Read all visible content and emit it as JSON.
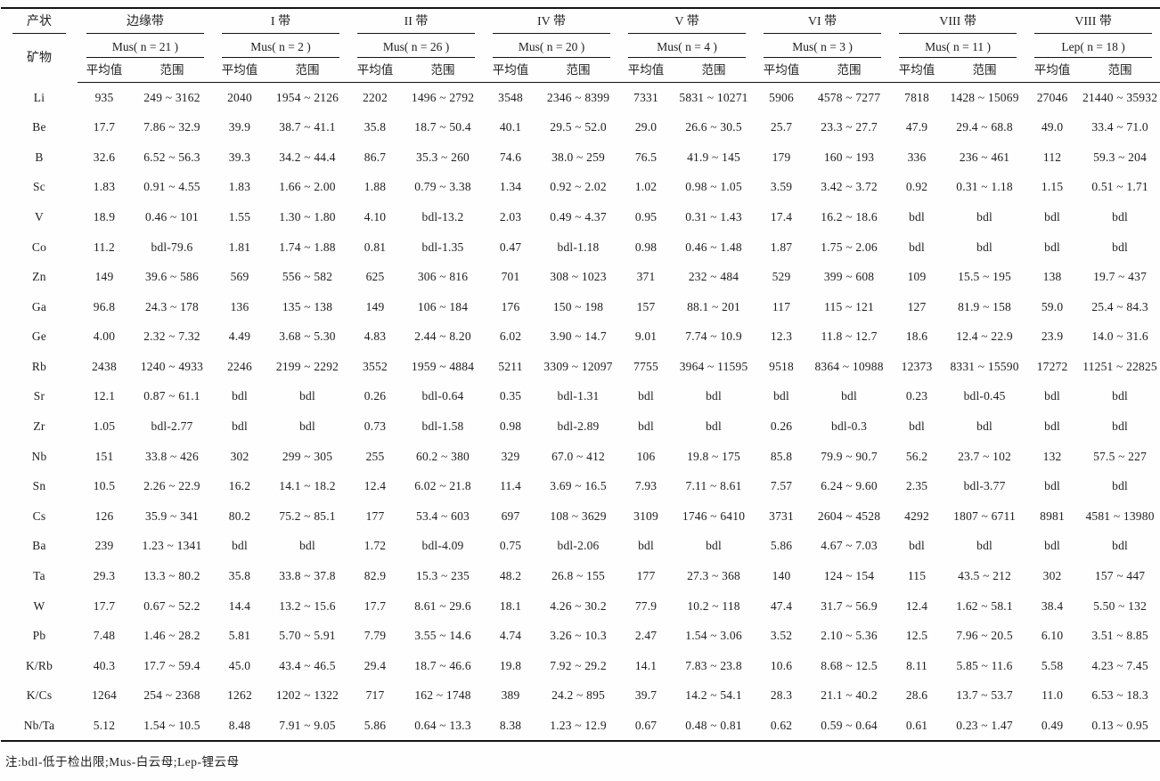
{
  "table": {
    "stub": {
      "occurrence_label": "产状",
      "mineral_label": "矿物"
    },
    "subheaders": [
      "平均值",
      "范围"
    ],
    "zones": [
      {
        "zone": "边缘带",
        "mineral": "Mus( n = 21 )"
      },
      {
        "zone": "I 带",
        "mineral": "Mus( n = 2 )"
      },
      {
        "zone": "II 带",
        "mineral": "Mus( n = 26 )"
      },
      {
        "zone": "IV 带",
        "mineral": "Mus( n = 20 )"
      },
      {
        "zone": "V 带",
        "mineral": "Mus( n = 4 )"
      },
      {
        "zone": "VI 带",
        "mineral": "Mus( n = 3 )"
      },
      {
        "zone": "VIII 带",
        "mineral": "Mus( n = 11 )"
      },
      {
        "zone": "VIII 带",
        "mineral": "Lep( n = 18 )"
      }
    ],
    "rows": [
      {
        "element": "Li",
        "values": [
          "935",
          "249 ~ 3162",
          "2040",
          "1954 ~ 2126",
          "2202",
          "1496 ~ 2792",
          "3548",
          "2346 ~ 8399",
          "7331",
          "5831 ~ 10271",
          "5906",
          "4578 ~ 7277",
          "7818",
          "1428 ~ 15069",
          "27046",
          "21440 ~ 35932"
        ]
      },
      {
        "element": "Be",
        "values": [
          "17.7",
          "7.86 ~ 32.9",
          "39.9",
          "38.7 ~ 41.1",
          "35.8",
          "18.7 ~ 50.4",
          "40.1",
          "29.5 ~ 52.0",
          "29.0",
          "26.6 ~ 30.5",
          "25.7",
          "23.3 ~ 27.7",
          "47.9",
          "29.4 ~ 68.8",
          "49.0",
          "33.4 ~ 71.0"
        ]
      },
      {
        "element": "B",
        "values": [
          "32.6",
          "6.52 ~ 56.3",
          "39.3",
          "34.2 ~ 44.4",
          "86.7",
          "35.3 ~ 260",
          "74.6",
          "38.0 ~ 259",
          "76.5",
          "41.9 ~ 145",
          "179",
          "160 ~ 193",
          "336",
          "236 ~ 461",
          "112",
          "59.3 ~ 204"
        ]
      },
      {
        "element": "Sc",
        "values": [
          "1.83",
          "0.91 ~ 4.55",
          "1.83",
          "1.66 ~ 2.00",
          "1.88",
          "0.79 ~ 3.38",
          "1.34",
          "0.92 ~ 2.02",
          "1.02",
          "0.98 ~ 1.05",
          "3.59",
          "3.42 ~ 3.72",
          "0.92",
          "0.31 ~ 1.18",
          "1.15",
          "0.51 ~ 1.71"
        ]
      },
      {
        "element": "V",
        "values": [
          "18.9",
          "0.46 ~ 101",
          "1.55",
          "1.30 ~ 1.80",
          "4.10",
          "bdl-13.2",
          "2.03",
          "0.49 ~ 4.37",
          "0.95",
          "0.31 ~ 1.43",
          "17.4",
          "16.2 ~ 18.6",
          "bdl",
          "bdl",
          "bdl",
          "bdl"
        ]
      },
      {
        "element": "Co",
        "values": [
          "11.2",
          "bdl-79.6",
          "1.81",
          "1.74 ~ 1.88",
          "0.81",
          "bdl-1.35",
          "0.47",
          "bdl-1.18",
          "0.98",
          "0.46 ~ 1.48",
          "1.87",
          "1.75 ~ 2.06",
          "bdl",
          "bdl",
          "bdl",
          "bdl"
        ]
      },
      {
        "element": "Zn",
        "values": [
          "149",
          "39.6 ~ 586",
          "569",
          "556 ~ 582",
          "625",
          "306 ~ 816",
          "701",
          "308 ~ 1023",
          "371",
          "232 ~ 484",
          "529",
          "399 ~ 608",
          "109",
          "15.5 ~ 195",
          "138",
          "19.7 ~ 437"
        ]
      },
      {
        "element": "Ga",
        "values": [
          "96.8",
          "24.3 ~ 178",
          "136",
          "135 ~ 138",
          "149",
          "106 ~ 184",
          "176",
          "150 ~ 198",
          "157",
          "88.1 ~ 201",
          "117",
          "115 ~ 121",
          "127",
          "81.9 ~ 158",
          "59.0",
          "25.4 ~ 84.3"
        ]
      },
      {
        "element": "Ge",
        "values": [
          "4.00",
          "2.32 ~ 7.32",
          "4.49",
          "3.68 ~ 5.30",
          "4.83",
          "2.44 ~ 8.20",
          "6.02",
          "3.90 ~ 14.7",
          "9.01",
          "7.74 ~ 10.9",
          "12.3",
          "11.8 ~ 12.7",
          "18.6",
          "12.4 ~ 22.9",
          "23.9",
          "14.0 ~ 31.6"
        ]
      },
      {
        "element": "Rb",
        "values": [
          "2438",
          "1240 ~ 4933",
          "2246",
          "2199 ~ 2292",
          "3552",
          "1959 ~ 4884",
          "5211",
          "3309 ~ 12097",
          "7755",
          "3964 ~ 11595",
          "9518",
          "8364 ~ 10988",
          "12373",
          "8331 ~ 15590",
          "17272",
          "11251 ~ 22825"
        ]
      },
      {
        "element": "Sr",
        "values": [
          "12.1",
          "0.87 ~ 61.1",
          "bdl",
          "bdl",
          "0.26",
          "bdl-0.64",
          "0.35",
          "bdl-1.31",
          "bdl",
          "bdl",
          "bdl",
          "bdl",
          "0.23",
          "bdl-0.45",
          "bdl",
          "bdl"
        ]
      },
      {
        "element": "Zr",
        "values": [
          "1.05",
          "bdl-2.77",
          "bdl",
          "bdl",
          "0.73",
          "bdl-1.58",
          "0.98",
          "bdl-2.89",
          "bdl",
          "bdl",
          "0.26",
          "bdl-0.3",
          "bdl",
          "bdl",
          "bdl",
          "bdl"
        ]
      },
      {
        "element": "Nb",
        "values": [
          "151",
          "33.8 ~ 426",
          "302",
          "299 ~ 305",
          "255",
          "60.2 ~ 380",
          "329",
          "67.0 ~ 412",
          "106",
          "19.8 ~ 175",
          "85.8",
          "79.9 ~ 90.7",
          "56.2",
          "23.7 ~ 102",
          "132",
          "57.5 ~ 227"
        ]
      },
      {
        "element": "Sn",
        "values": [
          "10.5",
          "2.26 ~ 22.9",
          "16.2",
          "14.1 ~ 18.2",
          "12.4",
          "6.02 ~ 21.8",
          "11.4",
          "3.69 ~ 16.5",
          "7.93",
          "7.11 ~ 8.61",
          "7.57",
          "6.24 ~ 9.60",
          "2.35",
          "bdl-3.77",
          "bdl",
          "bdl"
        ]
      },
      {
        "element": "Cs",
        "values": [
          "126",
          "35.9 ~ 341",
          "80.2",
          "75.2 ~ 85.1",
          "177",
          "53.4 ~ 603",
          "697",
          "108 ~ 3629",
          "3109",
          "1746 ~ 6410",
          "3731",
          "2604 ~ 4528",
          "4292",
          "1807 ~ 6711",
          "8981",
          "4581 ~ 13980"
        ]
      },
      {
        "element": "Ba",
        "values": [
          "239",
          "1.23 ~ 1341",
          "bdl",
          "bdl",
          "1.72",
          "bdl-4.09",
          "0.75",
          "bdl-2.06",
          "bdl",
          "bdl",
          "5.86",
          "4.67 ~ 7.03",
          "bdl",
          "bdl",
          "bdl",
          "bdl"
        ]
      },
      {
        "element": "Ta",
        "values": [
          "29.3",
          "13.3 ~ 80.2",
          "35.8",
          "33.8 ~ 37.8",
          "82.9",
          "15.3 ~ 235",
          "48.2",
          "26.8 ~ 155",
          "177",
          "27.3 ~ 368",
          "140",
          "124 ~ 154",
          "115",
          "43.5 ~ 212",
          "302",
          "157 ~ 447"
        ]
      },
      {
        "element": "W",
        "values": [
          "17.7",
          "0.67 ~ 52.2",
          "14.4",
          "13.2 ~ 15.6",
          "17.7",
          "8.61 ~ 29.6",
          "18.1",
          "4.26 ~ 30.2",
          "77.9",
          "10.2 ~ 118",
          "47.4",
          "31.7 ~ 56.9",
          "12.4",
          "1.62 ~ 58.1",
          "38.4",
          "5.50 ~ 132"
        ]
      },
      {
        "element": "Pb",
        "values": [
          "7.48",
          "1.46 ~ 28.2",
          "5.81",
          "5.70 ~ 5.91",
          "7.79",
          "3.55 ~ 14.6",
          "4.74",
          "3.26 ~ 10.3",
          "2.47",
          "1.54 ~ 3.06",
          "3.52",
          "2.10 ~ 5.36",
          "12.5",
          "7.96 ~ 20.5",
          "6.10",
          "3.51 ~ 8.85"
        ]
      },
      {
        "element": "K/Rb",
        "values": [
          "40.3",
          "17.7 ~ 59.4",
          "45.0",
          "43.4 ~ 46.5",
          "29.4",
          "18.7 ~ 46.6",
          "19.8",
          "7.92 ~ 29.2",
          "14.1",
          "7.83 ~ 23.8",
          "10.6",
          "8.68 ~ 12.5",
          "8.11",
          "5.85 ~ 11.6",
          "5.58",
          "4.23 ~ 7.45"
        ]
      },
      {
        "element": "K/Cs",
        "values": [
          "1264",
          "254 ~ 2368",
          "1262",
          "1202 ~ 1322",
          "717",
          "162 ~ 1748",
          "389",
          "24.2 ~ 895",
          "39.7",
          "14.2 ~ 54.1",
          "28.3",
          "21.1 ~ 40.2",
          "28.6",
          "13.7 ~ 53.7",
          "11.0",
          "6.53 ~ 18.3"
        ]
      },
      {
        "element": "Nb/Ta",
        "values": [
          "5.12",
          "1.54 ~ 10.5",
          "8.48",
          "7.91 ~ 9.05",
          "5.86",
          "0.64 ~ 13.3",
          "8.38",
          "1.23 ~ 12.9",
          "0.67",
          "0.48 ~ 0.81",
          "0.62",
          "0.59 ~ 0.64",
          "0.61",
          "0.23 ~ 1.47",
          "0.49",
          "0.13 ~ 0.95"
        ]
      }
    ],
    "note": "注:bdl-低于检出限;Mus-白云母;Lep-锂云母"
  }
}
